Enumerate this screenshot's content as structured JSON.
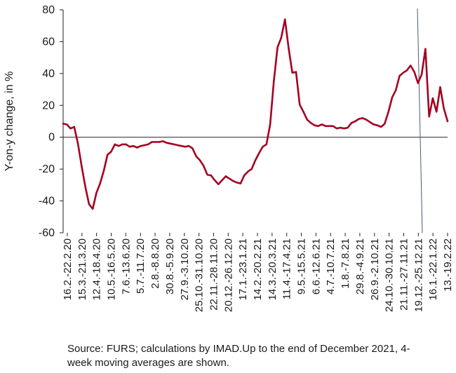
{
  "chart_data": {
    "type": "line",
    "ylabel": "Y-on-y change, in %",
    "xlabel": "",
    "ylim": [
      -60,
      80
    ],
    "yticks": [
      -60,
      -40,
      -20,
      0,
      20,
      40,
      60,
      80
    ],
    "grid": false,
    "legend": "none",
    "line_color": "#a50021",
    "marker_line_color": "#4a5a78",
    "x_tick_labels": [
      "16.2.-22.2.20",
      "15.3.-21.3.20",
      "12.4.-18.4.20",
      "10.5.-16.5.20",
      "7.6.-13.6.20",
      "5.7.-11.7.20",
      "2.8.-8.8.20",
      "30.8.-5.9.20",
      "27.9.-3.10.20",
      "25.10.-31.10.20",
      "22.11.-28.11.20",
      "20.12.-26.12.20",
      "17.1.-23.1.21",
      "14.2.-20.2.21",
      "14.3.-20.3.21",
      "11.4.-17.4.21",
      "9.5.-15.5.21",
      "6.6.-12.6.21",
      "4.7.-10.7.21",
      "1.8.-7.8.21",
      "29.8.-4.9.21",
      "26.9.-2.10.21",
      "24.10.-30.10.21",
      "21.11.-27.11.21",
      "19.12.-25.12.21",
      "16.1.-22.1.22",
      "13.-19.2.22"
    ],
    "series": [
      {
        "values": [
          8.5,
          8,
          5.5,
          6.5,
          -4,
          -18,
          -31,
          -42,
          -45,
          -35,
          -29,
          -21,
          -11,
          -9,
          -4.5,
          -5.5,
          -4.5,
          -4.5,
          -6,
          -5.5,
          -6.5,
          -5.5,
          -5,
          -4.5,
          -3,
          -3,
          -3,
          -2.5,
          -3.5,
          -4,
          -4.5,
          -5,
          -5.5,
          -6,
          -5.5,
          -7,
          -12,
          -14.5,
          -18,
          -23.5,
          -24,
          -27,
          -29.5,
          -27,
          -24.5,
          -26,
          -27.5,
          -28.5,
          -29,
          -24,
          -21.5,
          -20,
          -14.5,
          -10,
          -6,
          -4.5,
          8,
          35,
          56.5,
          62.5,
          74,
          56,
          40.5,
          41,
          20.5,
          16,
          11,
          9,
          7.5,
          7,
          8,
          7,
          7,
          7,
          5.5,
          6,
          5.5,
          6,
          9,
          10,
          11.5,
          12,
          11,
          9.5,
          8,
          7.5,
          6.5,
          8.5,
          16,
          25,
          29.5,
          38.5,
          40.5,
          42,
          45,
          41,
          34,
          39.5,
          55.5,
          13,
          24.5,
          16,
          31.5,
          18,
          10
        ]
      }
    ]
  },
  "source_note": "Source: FURS; calculations by IMAD.Up to the end of December 2021, 4-week moving averages are shown."
}
